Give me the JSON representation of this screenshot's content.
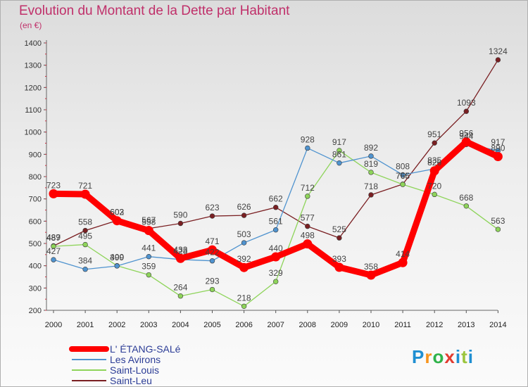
{
  "title": "Evolution du Montant de la Dette par Habitant",
  "subtitle": "(en €)",
  "brand": "Proxiti",
  "chart_data": {
    "type": "line",
    "x": [
      2000,
      2001,
      2002,
      2003,
      2004,
      2005,
      2006,
      2007,
      2008,
      2009,
      2010,
      2011,
      2012,
      2013,
      2014
    ],
    "ylim": [
      200,
      1400
    ],
    "yticks": [
      200,
      300,
      400,
      500,
      600,
      700,
      800,
      900,
      1000,
      1100,
      1200,
      1300,
      1400
    ],
    "grid": false,
    "legend_position": "bottom-left",
    "series": [
      {
        "name": "L' ÉTANG-SALé",
        "color": "#ff0000",
        "values": [
          723,
          721,
          602,
          558,
          433,
          471,
          392,
          440,
          498,
          393,
          358,
          414,
          826,
          956,
          890
        ]
      },
      {
        "name": "Les Avirons",
        "color": "#4f93cf",
        "values": [
          427,
          384,
          399,
          441,
          428,
          422,
          503,
          561,
          928,
          861,
          892,
          808,
          835,
          944,
          917
        ]
      },
      {
        "name": "Saint-Louis",
        "color": "#8ed45a",
        "values": [
          487,
          495,
          400,
          359,
          264,
          293,
          218,
          329,
          712,
          917,
          819,
          765,
          720,
          668,
          563
        ]
      },
      {
        "name": "Saint-Leu",
        "color": "#7a1f22",
        "values": [
          489,
          558,
          603,
          567,
          590,
          623,
          626,
          662,
          577,
          525,
          718,
          766,
          951,
          1093,
          1324
        ]
      }
    ]
  }
}
